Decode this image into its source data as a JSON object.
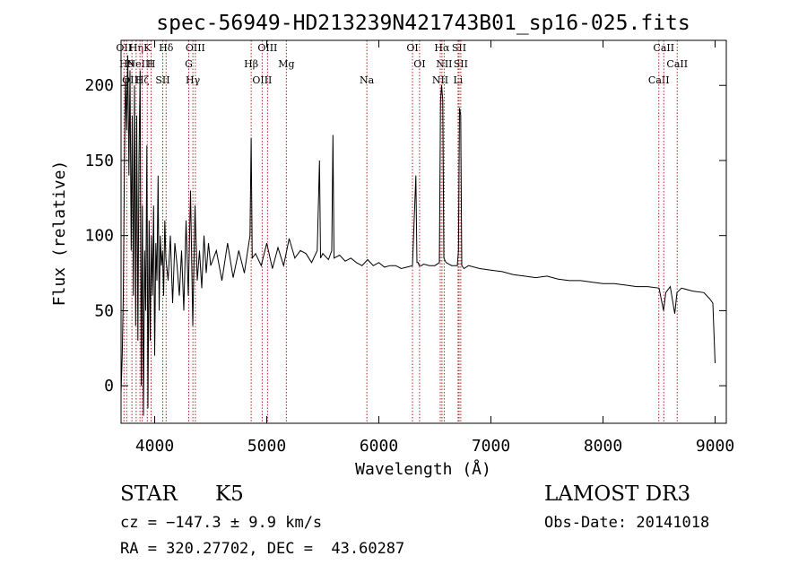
{
  "chart_data": {
    "type": "line",
    "title": "spec-56949-HD213239N421743B01_sp16-025.fits",
    "xlabel": "Wavelength (Å)",
    "ylabel": "Flux (relative)",
    "xlim": [
      3700,
      9100
    ],
    "ylim": [
      -25,
      230
    ],
    "xticks": [
      4000,
      5000,
      6000,
      7000,
      8000,
      9000
    ],
    "yticks": [
      0,
      50,
      100,
      150,
      200
    ],
    "grid": false,
    "line_color": "#000000",
    "marker_color": "#b22222",
    "series": [
      {
        "x": [
          3700,
          3710,
          3720,
          3730,
          3740,
          3750,
          3760,
          3770,
          3780,
          3790,
          3800,
          3810,
          3820,
          3830,
          3840,
          3850,
          3860,
          3870,
          3880,
          3890,
          3900,
          3910,
          3920,
          3930,
          3940,
          3950,
          3960,
          3970,
          3980,
          3990,
          4000,
          4010,
          4020,
          4030,
          4040,
          4050,
          4060,
          4070,
          4080,
          4090,
          4100,
          4120,
          4140,
          4160,
          4180,
          4200,
          4220,
          4240,
          4260,
          4280,
          4300,
          4320,
          4340,
          4360,
          4380,
          4400,
          4420,
          4440,
          4460,
          4480,
          4500,
          4550,
          4600,
          4650,
          4700,
          4750,
          4800,
          4850,
          4861,
          4870,
          4900,
          4950,
          5000,
          5050,
          5100,
          5150,
          5200,
          5250,
          5300,
          5350,
          5400,
          5450,
          5470,
          5480,
          5500,
          5550,
          5580,
          5590,
          5600,
          5650,
          5700,
          5750,
          5800,
          5850,
          5900,
          5950,
          6000,
          6050,
          6100,
          6150,
          6200,
          6250,
          6300,
          6330,
          6340,
          6350,
          6360,
          6380,
          6400,
          6450,
          6500,
          6540,
          6550,
          6560,
          6570,
          6580,
          6600,
          6650,
          6700,
          6710,
          6720,
          6730,
          6740,
          6760,
          6800,
          6900,
          7000,
          7100,
          7200,
          7300,
          7400,
          7500,
          7600,
          7700,
          7800,
          7900,
          8000,
          8100,
          8200,
          8300,
          8400,
          8500,
          8540,
          8560,
          8600,
          8640,
          8660,
          8700,
          8800,
          8900,
          8950,
          8980,
          9000
        ],
        "values": [
          -5,
          20,
          60,
          150,
          205,
          170,
          220,
          140,
          210,
          90,
          180,
          60,
          200,
          40,
          180,
          30,
          150,
          210,
          0,
          120,
          -20,
          90,
          50,
          160,
          -15,
          110,
          30,
          100,
          60,
          120,
          20,
          95,
          70,
          140,
          50,
          100,
          80,
          90,
          60,
          110,
          85,
          70,
          100,
          55,
          95,
          80,
          60,
          90,
          50,
          110,
          60,
          130,
          40,
          120,
          70,
          90,
          65,
          100,
          75,
          95,
          80,
          90,
          70,
          95,
          72,
          90,
          75,
          100,
          165,
          85,
          88,
          80,
          95,
          78,
          92,
          80,
          98,
          85,
          90,
          88,
          82,
          90,
          150,
          85,
          88,
          84,
          90,
          167,
          85,
          87,
          83,
          85,
          82,
          80,
          84,
          80,
          82,
          79,
          80,
          80,
          78,
          79,
          80,
          140,
          82,
          82,
          80,
          80,
          81,
          80,
          80,
          82,
          190,
          200,
          190,
          85,
          82,
          80,
          80,
          90,
          185,
          180,
          80,
          78,
          80,
          78,
          77,
          76,
          74,
          73,
          72,
          73,
          71,
          70,
          70,
          69,
          68,
          68,
          67,
          66,
          66,
          65,
          50,
          62,
          66,
          48,
          62,
          65,
          63,
          62,
          58,
          55,
          15
        ]
      }
    ],
    "lines": [
      {
        "x": 3726,
        "label": "OII"
      },
      {
        "x": 3750,
        "label": "H9"
      },
      {
        "x": 3797,
        "label": "OIII"
      },
      {
        "x": 3835,
        "label": "Hη"
      },
      {
        "x": 3869,
        "label": "NeIII"
      },
      {
        "x": 3889,
        "label": "Hζ"
      },
      {
        "x": 3934,
        "label": "K"
      },
      {
        "x": 3968,
        "label": "H"
      },
      {
        "x": 4072,
        "label": "SII"
      },
      {
        "x": 4102,
        "label": "Hδ"
      },
      {
        "x": 4304,
        "label": "G"
      },
      {
        "x": 4341,
        "label": "Hγ"
      },
      {
        "x": 4363,
        "label": "OIII"
      },
      {
        "x": 4861,
        "label": "Hβ"
      },
      {
        "x": 4959,
        "label": "OIII"
      },
      {
        "x": 5007,
        "label": "OIII"
      },
      {
        "x": 5175,
        "label": "Mg"
      },
      {
        "x": 5893,
        "label": "Na"
      },
      {
        "x": 6300,
        "label": "OI"
      },
      {
        "x": 6363,
        "label": "OI"
      },
      {
        "x": 6548,
        "label": "NII"
      },
      {
        "x": 6563,
        "label": "Hα"
      },
      {
        "x": 6583,
        "label": "NII"
      },
      {
        "x": 6707,
        "label": "Li"
      },
      {
        "x": 6716,
        "label": "SII"
      },
      {
        "x": 6731,
        "label": "SII"
      },
      {
        "x": 8498,
        "label": "CaII"
      },
      {
        "x": 8542,
        "label": "CaII"
      },
      {
        "x": 8662,
        "label": "CaII"
      }
    ]
  },
  "info": {
    "object_class": "STAR",
    "subclass": "K5",
    "survey": "LAMOST DR3",
    "cz": "cz = −147.3 ± 9.9 km/s",
    "obs_date": "Obs-Date: 20141018",
    "coords": "RA = 320.27702, DEC =  43.60287"
  }
}
